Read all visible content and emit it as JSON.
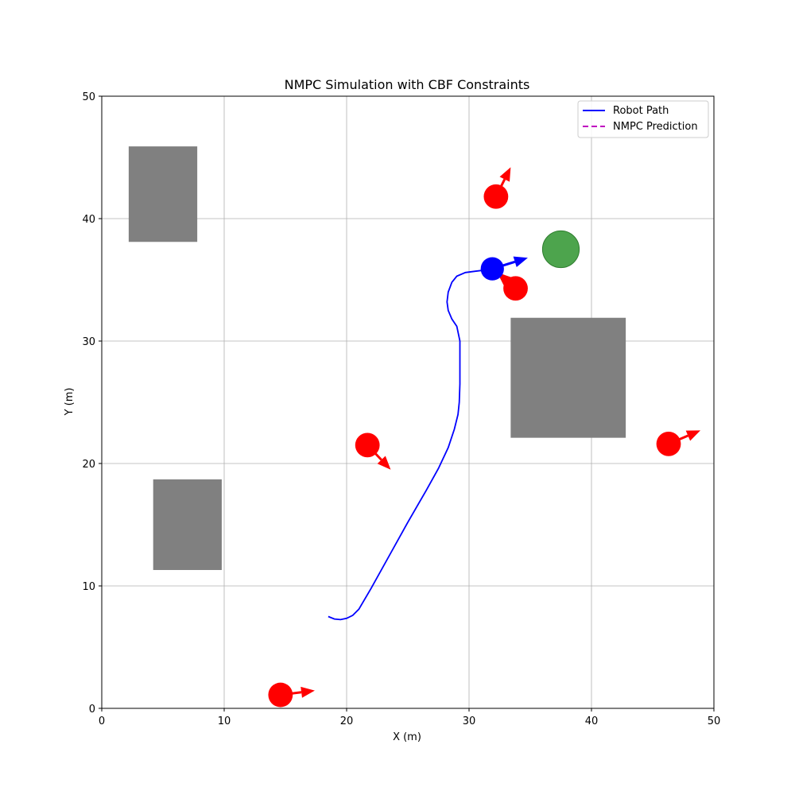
{
  "chart_data": {
    "type": "scatter",
    "title": "NMPC Simulation with CBF Constraints",
    "xlabel": "X (m)",
    "ylabel": "Y (m)",
    "xlim": [
      0,
      50
    ],
    "ylim": [
      0,
      50
    ],
    "xticks": [
      0,
      10,
      20,
      30,
      40,
      50
    ],
    "yticks": [
      0,
      10,
      20,
      30,
      40,
      50
    ],
    "grid": true,
    "legend_position": "top-right",
    "legend": [
      {
        "label": "Robot Path",
        "color": "#0000ff",
        "style": "solid"
      },
      {
        "label": "NMPC Prediction",
        "color": "#c000c0",
        "style": "dashed"
      }
    ],
    "colors": {
      "robot": "#0000ff",
      "path": "#0000ff",
      "obstacle_static": "#808080",
      "obstacle_dynamic": "#ff0000",
      "goal": "#3a9a3a"
    },
    "robot_path": [
      [
        18.5,
        7.5
      ],
      [
        19.0,
        7.3
      ],
      [
        19.5,
        7.25
      ],
      [
        20.0,
        7.35
      ],
      [
        20.5,
        7.6
      ],
      [
        21.0,
        8.1
      ],
      [
        22.0,
        9.8
      ],
      [
        23.5,
        12.5
      ],
      [
        25.0,
        15.2
      ],
      [
        26.5,
        17.8
      ],
      [
        27.5,
        19.6
      ],
      [
        28.3,
        21.3
      ],
      [
        28.8,
        22.8
      ],
      [
        29.1,
        24.0
      ],
      [
        29.2,
        25.0
      ],
      [
        29.25,
        26.5
      ],
      [
        29.25,
        28.0
      ],
      [
        29.25,
        30.0
      ],
      [
        29.0,
        31.2
      ],
      [
        28.6,
        31.8
      ],
      [
        28.3,
        32.5
      ],
      [
        28.2,
        33.2
      ],
      [
        28.3,
        34.0
      ],
      [
        28.6,
        34.8
      ],
      [
        29.0,
        35.3
      ],
      [
        29.7,
        35.6
      ],
      [
        30.5,
        35.7
      ],
      [
        31.3,
        35.8
      ],
      [
        31.9,
        35.9
      ]
    ],
    "robot": {
      "x": 31.9,
      "y": 35.9,
      "radius": 0.95,
      "heading": [
        2.9,
        0.9
      ]
    },
    "goal": {
      "x": 37.5,
      "y": 37.5,
      "radius": 1.5
    },
    "static_obstacles": [
      {
        "x": 2.2,
        "y": 38.1,
        "width": 5.6,
        "height": 7.8
      },
      {
        "x": 4.2,
        "y": 11.3,
        "width": 5.6,
        "height": 7.4
      },
      {
        "x": 33.4,
        "y": 22.1,
        "width": 9.4,
        "height": 9.8
      }
    ],
    "dynamic_obstacles": [
      {
        "x": 32.2,
        "y": 41.8,
        "radius": 1.0,
        "vx": 1.2,
        "vy": 2.4
      },
      {
        "x": 33.8,
        "y": 34.3,
        "radius": 1.0,
        "vx": -1.5,
        "vy": 1.3
      },
      {
        "x": 21.7,
        "y": 21.5,
        "radius": 1.0,
        "vx": 1.9,
        "vy": -2.0
      },
      {
        "x": 46.3,
        "y": 21.6,
        "radius": 1.0,
        "vx": 2.6,
        "vy": 1.1
      },
      {
        "x": 14.6,
        "y": 1.1,
        "radius": 1.0,
        "vx": 2.8,
        "vy": 0.35
      }
    ]
  }
}
